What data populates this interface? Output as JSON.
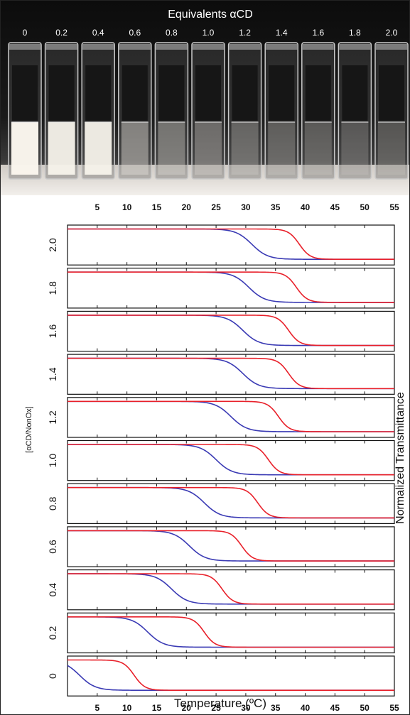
{
  "photo": {
    "header_label": "Equivalents αCD",
    "vial_labels": [
      "0",
      "0.2",
      "0.4",
      "0.6",
      "0.8",
      "1.0",
      "1.2",
      "1.4",
      "1.6",
      "1.8",
      "2.0"
    ],
    "vial_turbidity": [
      1.0,
      0.95,
      0.95,
      0.35,
      0.25,
      0.2,
      0.15,
      0.1,
      0.08,
      0.06,
      0.04
    ]
  },
  "chart_data": {
    "type": "line",
    "xlabel": "Temperature (ºC)",
    "ylabel_left": "[αCD/NonOx]",
    "ylabel_right": "Normalized Transmittance",
    "xlim": [
      0,
      55
    ],
    "x_ticks": [
      "5",
      "10",
      "15",
      "20",
      "25",
      "30",
      "35",
      "40",
      "45",
      "50",
      "55"
    ],
    "x_tick_values": [
      5,
      10,
      15,
      20,
      25,
      30,
      35,
      40,
      45,
      50,
      55
    ],
    "ylim": [
      0,
      1
    ],
    "panel_labels": [
      "2.0",
      "1.8",
      "1.6",
      "1.4",
      "1.2",
      "1.0",
      "0.8",
      "0.6",
      "0.4",
      "0.2",
      "0"
    ],
    "series": [
      {
        "color": "#e8202a",
        "transition_midpoints": [
          39.0,
          38.5,
          37.2,
          37.2,
          35.5,
          33.8,
          32.0,
          29.3,
          26.0,
          23.0,
          11.2
        ]
      },
      {
        "color": "#3a3ab4",
        "transition_midpoints": [
          31.0,
          30.5,
          29.5,
          29.5,
          27.5,
          25.0,
          23.0,
          20.5,
          17.5,
          13.5,
          2.0
        ]
      }
    ],
    "grid": false,
    "legend": "none"
  }
}
